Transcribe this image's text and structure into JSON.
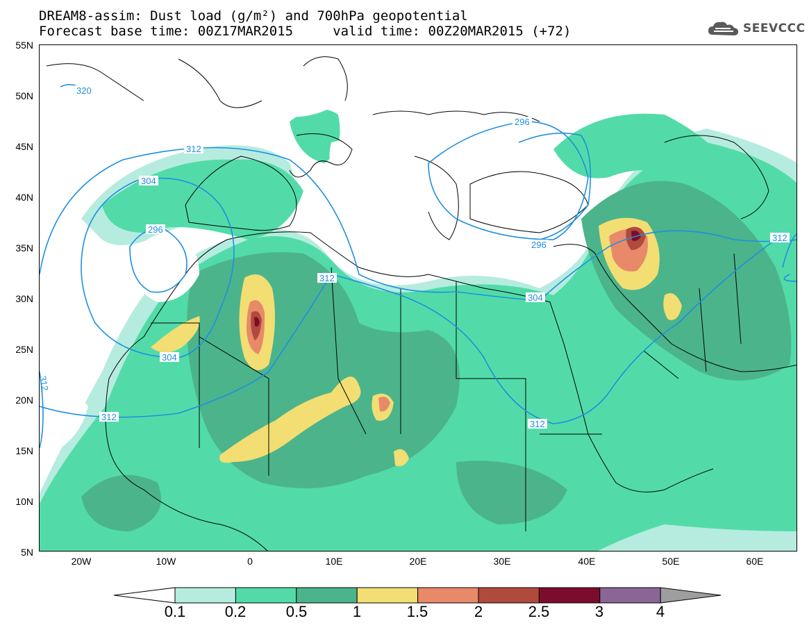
{
  "header": {
    "title_line1": "DREAM8-assim: Dust load (g/m²) and 700hPa geopotential",
    "title_line2": "Forecast base time: 00Z17MAR2015     valid time: 00Z20MAR2015 (+72)",
    "logo_text": "SEEVCCC"
  },
  "map": {
    "lat_ticks": [
      "55N",
      "50N",
      "45N",
      "40N",
      "35N",
      "30N",
      "25N",
      "20N",
      "15N",
      "10N",
      "5N"
    ],
    "lon_ticks": [
      "20W",
      "10W",
      "0",
      "10E",
      "20E",
      "30E",
      "40E",
      "50E",
      "60E"
    ],
    "contour_labels": [
      "320",
      "312",
      "304",
      "296",
      "312",
      "304",
      "312",
      "296",
      "296",
      "304",
      "312",
      "312",
      "312"
    ],
    "colors": {
      "water": "#ffffff",
      "coast": "#000000",
      "contour": "#1e8fe0"
    }
  },
  "colorbar": {
    "labels": [
      "0.1",
      "0.2",
      "0.5",
      "1",
      "1.5",
      "2",
      "2.5",
      "3",
      "4"
    ],
    "colors": [
      "#ffffff",
      "#b5ecdf",
      "#52dba8",
      "#4cb48b",
      "#f2de73",
      "#e8896a",
      "#b04a3c",
      "#7c0c2c",
      "#8a6596",
      "#9e9e9e"
    ]
  }
}
